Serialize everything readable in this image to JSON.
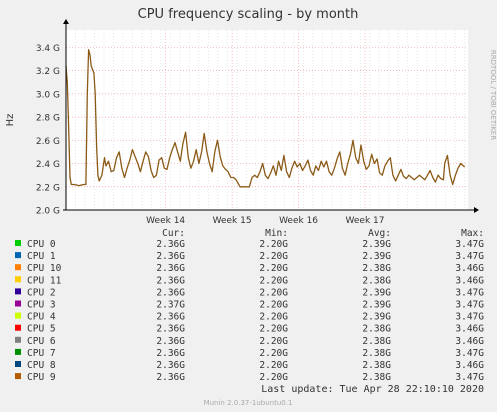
{
  "chart_data": {
    "type": "line",
    "title": "CPU frequency scaling - by month",
    "ylabel": "Hz",
    "side_label": "RRDTOOL / TOBI OETIKER",
    "y_ticks": [
      "2.0 G",
      "2.2 G",
      "2.4 G",
      "2.6 G",
      "2.8 G",
      "3.0 G",
      "3.2 G",
      "3.4 G"
    ],
    "y_tick_values": [
      2.0,
      2.2,
      2.4,
      2.6,
      2.8,
      3.0,
      3.2,
      3.4
    ],
    "ylim": [
      2.0,
      3.55
    ],
    "x_ticks": [
      "Week 14",
      "Week 15",
      "Week 16",
      "Week 17"
    ],
    "x_tick_values": [
      14,
      15,
      16,
      17
    ],
    "xlim": [
      12.5,
      18.55
    ],
    "grid": true,
    "series_color": "#8b5a17",
    "values": [
      [
        12.5,
        3.24
      ],
      [
        12.52,
        3.1
      ],
      [
        12.54,
        2.7
      ],
      [
        12.56,
        2.28
      ],
      [
        12.58,
        2.22
      ],
      [
        12.62,
        2.22
      ],
      [
        12.7,
        2.21
      ],
      [
        12.76,
        2.22
      ],
      [
        12.8,
        2.22
      ],
      [
        12.82,
        3.0
      ],
      [
        12.84,
        3.38
      ],
      [
        12.86,
        3.34
      ],
      [
        12.88,
        3.24
      ],
      [
        12.92,
        3.18
      ],
      [
        12.94,
        3.0
      ],
      [
        12.96,
        2.55
      ],
      [
        12.98,
        2.3
      ],
      [
        13.0,
        2.25
      ],
      [
        13.04,
        2.3
      ],
      [
        13.08,
        2.45
      ],
      [
        13.1,
        2.38
      ],
      [
        13.14,
        2.42
      ],
      [
        13.18,
        2.33
      ],
      [
        13.22,
        2.34
      ],
      [
        13.26,
        2.45
      ],
      [
        13.3,
        2.5
      ],
      [
        13.34,
        2.36
      ],
      [
        13.38,
        2.28
      ],
      [
        13.42,
        2.36
      ],
      [
        13.46,
        2.43
      ],
      [
        13.5,
        2.52
      ],
      [
        13.54,
        2.46
      ],
      [
        13.58,
        2.4
      ],
      [
        13.62,
        2.33
      ],
      [
        13.66,
        2.42
      ],
      [
        13.7,
        2.5
      ],
      [
        13.74,
        2.46
      ],
      [
        13.78,
        2.34
      ],
      [
        13.82,
        2.28
      ],
      [
        13.86,
        2.3
      ],
      [
        13.9,
        2.43
      ],
      [
        13.94,
        2.45
      ],
      [
        13.98,
        2.36
      ],
      [
        14.02,
        2.35
      ],
      [
        14.06,
        2.45
      ],
      [
        14.1,
        2.52
      ],
      [
        14.14,
        2.58
      ],
      [
        14.18,
        2.5
      ],
      [
        14.22,
        2.42
      ],
      [
        14.26,
        2.57
      ],
      [
        14.3,
        2.67
      ],
      [
        14.34,
        2.45
      ],
      [
        14.38,
        2.36
      ],
      [
        14.42,
        2.42
      ],
      [
        14.46,
        2.52
      ],
      [
        14.5,
        2.4
      ],
      [
        14.54,
        2.5
      ],
      [
        14.58,
        2.66
      ],
      [
        14.62,
        2.5
      ],
      [
        14.66,
        2.4
      ],
      [
        14.7,
        2.33
      ],
      [
        14.74,
        2.5
      ],
      [
        14.78,
        2.6
      ],
      [
        14.82,
        2.46
      ],
      [
        14.86,
        2.38
      ],
      [
        14.9,
        2.35
      ],
      [
        14.94,
        2.33
      ],
      [
        14.98,
        2.28
      ],
      [
        15.02,
        2.28
      ],
      [
        15.06,
        2.26
      ],
      [
        15.12,
        2.2
      ],
      [
        15.2,
        2.2
      ],
      [
        15.26,
        2.2
      ],
      [
        15.3,
        2.28
      ],
      [
        15.34,
        2.3
      ],
      [
        15.38,
        2.28
      ],
      [
        15.42,
        2.33
      ],
      [
        15.46,
        2.4
      ],
      [
        15.5,
        2.3
      ],
      [
        15.54,
        2.27
      ],
      [
        15.58,
        2.32
      ],
      [
        15.62,
        2.38
      ],
      [
        15.66,
        2.3
      ],
      [
        15.7,
        2.42
      ],
      [
        15.74,
        2.34
      ],
      [
        15.78,
        2.47
      ],
      [
        15.82,
        2.33
      ],
      [
        15.86,
        2.28
      ],
      [
        15.9,
        2.36
      ],
      [
        15.94,
        2.42
      ],
      [
        15.98,
        2.37
      ],
      [
        16.02,
        2.4
      ],
      [
        16.06,
        2.34
      ],
      [
        16.1,
        2.38
      ],
      [
        16.14,
        2.43
      ],
      [
        16.18,
        2.34
      ],
      [
        16.22,
        2.3
      ],
      [
        16.26,
        2.38
      ],
      [
        16.3,
        2.34
      ],
      [
        16.34,
        2.42
      ],
      [
        16.38,
        2.37
      ],
      [
        16.42,
        2.42
      ],
      [
        16.46,
        2.33
      ],
      [
        16.5,
        2.3
      ],
      [
        16.54,
        2.36
      ],
      [
        16.58,
        2.44
      ],
      [
        16.62,
        2.5
      ],
      [
        16.66,
        2.36
      ],
      [
        16.7,
        2.3
      ],
      [
        16.74,
        2.4
      ],
      [
        16.78,
        2.48
      ],
      [
        16.82,
        2.6
      ],
      [
        16.86,
        2.45
      ],
      [
        16.9,
        2.4
      ],
      [
        16.94,
        2.56
      ],
      [
        16.98,
        2.42
      ],
      [
        17.02,
        2.35
      ],
      [
        17.06,
        2.38
      ],
      [
        17.1,
        2.48
      ],
      [
        17.14,
        2.4
      ],
      [
        17.18,
        2.44
      ],
      [
        17.22,
        2.32
      ],
      [
        17.26,
        2.3
      ],
      [
        17.3,
        2.38
      ],
      [
        17.34,
        2.42
      ],
      [
        17.38,
        2.45
      ],
      [
        17.42,
        2.3
      ],
      [
        17.46,
        2.25
      ],
      [
        17.5,
        2.3
      ],
      [
        17.54,
        2.35
      ],
      [
        17.58,
        2.29
      ],
      [
        17.62,
        2.27
      ],
      [
        17.66,
        2.3
      ],
      [
        17.7,
        2.28
      ],
      [
        17.74,
        2.26
      ],
      [
        17.78,
        2.28
      ],
      [
        17.82,
        2.3
      ],
      [
        17.86,
        2.28
      ],
      [
        17.9,
        2.26
      ],
      [
        17.94,
        2.3
      ],
      [
        17.98,
        2.34
      ],
      [
        18.02,
        2.28
      ],
      [
        18.06,
        2.24
      ],
      [
        18.1,
        2.3
      ],
      [
        18.14,
        2.27
      ],
      [
        18.18,
        2.26
      ],
      [
        18.2,
        2.4
      ],
      [
        18.24,
        2.47
      ],
      [
        18.28,
        2.3
      ],
      [
        18.32,
        2.22
      ],
      [
        18.36,
        2.3
      ],
      [
        18.4,
        2.36
      ],
      [
        18.44,
        2.4
      ],
      [
        18.5,
        2.37
      ]
    ]
  },
  "legend": {
    "headers": [
      "Cur:",
      "Min:",
      "Avg:",
      "Max:"
    ],
    "rows": [
      {
        "name": "CPU 0",
        "color": "#00cc00",
        "cur": "2.36G",
        "min": "2.20G",
        "avg": "2.39G",
        "max": "3.47G"
      },
      {
        "name": "CPU 1",
        "color": "#0066b3",
        "cur": "2.36G",
        "min": "2.20G",
        "avg": "2.39G",
        "max": "3.47G"
      },
      {
        "name": "CPU 10",
        "color": "#ff8000",
        "cur": "2.36G",
        "min": "2.20G",
        "avg": "2.38G",
        "max": "3.46G"
      },
      {
        "name": "CPU 11",
        "color": "#ffcc00",
        "cur": "2.36G",
        "min": "2.20G",
        "avg": "2.38G",
        "max": "3.46G"
      },
      {
        "name": "CPU 2",
        "color": "#330099",
        "cur": "2.36G",
        "min": "2.20G",
        "avg": "2.39G",
        "max": "3.47G"
      },
      {
        "name": "CPU 3",
        "color": "#990099",
        "cur": "2.37G",
        "min": "2.20G",
        "avg": "2.39G",
        "max": "3.47G"
      },
      {
        "name": "CPU 4",
        "color": "#ccff00",
        "cur": "2.36G",
        "min": "2.20G",
        "avg": "2.39G",
        "max": "3.47G"
      },
      {
        "name": "CPU 5",
        "color": "#ff0000",
        "cur": "2.36G",
        "min": "2.20G",
        "avg": "2.38G",
        "max": "3.46G"
      },
      {
        "name": "CPU 6",
        "color": "#808080",
        "cur": "2.36G",
        "min": "2.20G",
        "avg": "2.38G",
        "max": "3.46G"
      },
      {
        "name": "CPU 7",
        "color": "#008f00",
        "cur": "2.36G",
        "min": "2.20G",
        "avg": "2.38G",
        "max": "3.47G"
      },
      {
        "name": "CPU 8",
        "color": "#00487d",
        "cur": "2.36G",
        "min": "2.20G",
        "avg": "2.38G",
        "max": "3.46G"
      },
      {
        "name": "CPU 9",
        "color": "#b35a00",
        "cur": "2.36G",
        "min": "2.20G",
        "avg": "2.38G",
        "max": "3.47G"
      }
    ]
  },
  "last_update": "Last update: Tue Apr 28 22:10:10 2020",
  "footer": "Munin 2.0.37-1ubuntu0.1"
}
